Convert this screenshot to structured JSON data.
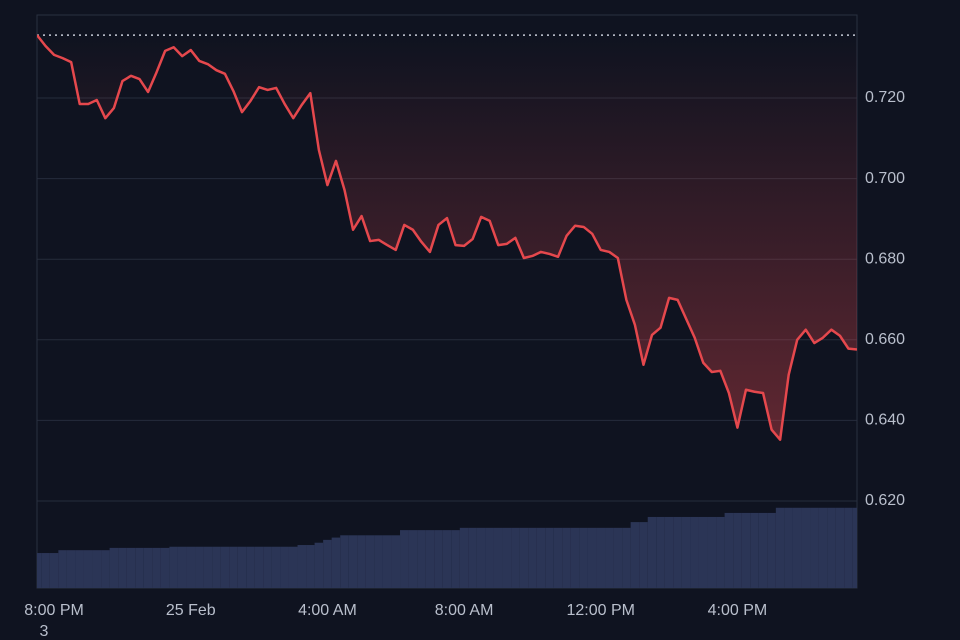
{
  "chart_data": {
    "type": "line",
    "x": [
      -0.5,
      -0.25,
      0,
      0.25,
      0.5,
      0.75,
      1,
      1.25,
      1.5,
      1.75,
      2,
      2.25,
      2.5,
      2.75,
      3,
      3.25,
      3.5,
      3.75,
      4,
      4.25,
      4.5,
      4.75,
      5,
      5.25,
      5.5,
      5.75,
      6,
      6.25,
      6.5,
      6.75,
      7,
      7.25,
      7.5,
      7.75,
      8,
      8.25,
      8.5,
      8.75,
      9,
      9.25,
      9.5,
      9.75,
      10,
      10.25,
      10.5,
      10.75,
      11,
      11.25,
      11.5,
      11.75,
      12,
      12.25,
      12.5,
      12.75,
      13,
      13.25,
      13.5,
      13.75,
      14,
      14.25,
      14.5,
      14.75,
      15,
      15.25,
      15.5,
      15.75,
      16,
      16.25,
      16.5,
      16.75,
      17,
      17.25,
      17.5,
      17.75,
      18,
      18.25,
      18.5,
      18.75,
      19,
      19.25,
      19.5,
      19.75,
      20,
      20.25,
      20.5,
      20.75,
      21,
      21.25,
      21.5,
      21.75,
      22,
      22.25,
      22.5,
      22.75,
      23,
      23.25,
      23.5
    ],
    "series": [
      {
        "color": "#e5484d",
        "values": [
          0.7356,
          0.7329,
          0.7307,
          0.7299,
          0.7289,
          0.7185,
          0.7185,
          0.7195,
          0.715,
          0.7175,
          0.7242,
          0.7255,
          0.7247,
          0.7215,
          0.7264,
          0.7317,
          0.7326,
          0.7304,
          0.7319,
          0.7292,
          0.7284,
          0.7269,
          0.726,
          0.7217,
          0.7165,
          0.7193,
          0.7227,
          0.722,
          0.7225,
          0.7185,
          0.715,
          0.7183,
          0.7212,
          0.7071,
          0.6984,
          0.7044,
          0.6972,
          0.6873,
          0.6907,
          0.6845,
          0.6848,
          0.6835,
          0.6823,
          0.6885,
          0.6873,
          0.6843,
          0.6818,
          0.6885,
          0.6902,
          0.6835,
          0.6833,
          0.685,
          0.6905,
          0.6895,
          0.6835,
          0.6838,
          0.6853,
          0.6803,
          0.6808,
          0.6818,
          0.6813,
          0.6806,
          0.6858,
          0.6883,
          0.688,
          0.6863,
          0.6823,
          0.6818,
          0.6803,
          0.6699,
          0.6637,
          0.6538,
          0.6612,
          0.663,
          0.6704,
          0.6699,
          0.6652,
          0.6605,
          0.6543,
          0.652,
          0.6523,
          0.6468,
          0.6382,
          0.6476,
          0.6471,
          0.6468,
          0.6377,
          0.6352,
          0.6513,
          0.66,
          0.6625,
          0.6592,
          0.6605,
          0.6625,
          0.661,
          0.6578,
          0.6576
        ]
      },
      {
        "color": "#2b3556",
        "axis": "y2",
        "values": [
          6.1,
          6.1,
          6.1,
          6.6,
          6.6,
          6.6,
          6.6,
          6.6,
          6.6,
          7.0,
          7.0,
          7.0,
          7.0,
          7.0,
          7.0,
          7.0,
          7.2,
          7.2,
          7.2,
          7.2,
          7.2,
          7.2,
          7.2,
          7.2,
          7.2,
          7.2,
          7.2,
          7.2,
          7.2,
          7.2,
          7.2,
          7.5,
          7.5,
          7.9,
          8.4,
          8.8,
          9.2,
          9.2,
          9.2,
          9.2,
          9.2,
          9.2,
          9.2,
          10.1,
          10.1,
          10.1,
          10.1,
          10.1,
          10.1,
          10.1,
          10.5,
          10.5,
          10.5,
          10.5,
          10.5,
          10.5,
          10.5,
          10.5,
          10.5,
          10.5,
          10.5,
          10.5,
          10.5,
          10.5,
          10.5,
          10.5,
          10.5,
          10.5,
          10.5,
          10.5,
          11.5,
          11.5,
          12.4,
          12.4,
          12.4,
          12.4,
          12.4,
          12.4,
          12.4,
          12.4,
          12.4,
          13.1,
          13.1,
          13.1,
          13.1,
          13.1,
          13.1,
          14.0,
          14.0,
          14.0,
          14.0,
          14.0,
          14.0,
          14.0,
          14.0,
          14.0,
          14.0
        ]
      }
    ],
    "xlim": [
      -0.5,
      23.5
    ],
    "xticks": [
      {
        "value": 0,
        "label": "8:00 PM"
      },
      {
        "value": 4,
        "label": "25 Feb"
      },
      {
        "value": 8,
        "label": "4:00 AM"
      },
      {
        "value": 12,
        "label": "8:00 AM"
      },
      {
        "value": 16,
        "label": "12:00 PM"
      },
      {
        "value": 20,
        "label": "4:00 PM"
      }
    ],
    "ylim": [
      0.5984,
      0.7406
    ],
    "yticks": [
      {
        "value": 0.62,
        "label": "0.620"
      },
      {
        "value": 0.64,
        "label": "0.640"
      },
      {
        "value": 0.66,
        "label": "0.660"
      },
      {
        "value": 0.68,
        "label": "0.680"
      },
      {
        "value": 0.7,
        "label": "0.700"
      },
      {
        "value": 0.72,
        "label": "0.720"
      }
    ],
    "y2lim": [
      0,
      100
    ],
    "grid": true,
    "annotation": "3"
  }
}
